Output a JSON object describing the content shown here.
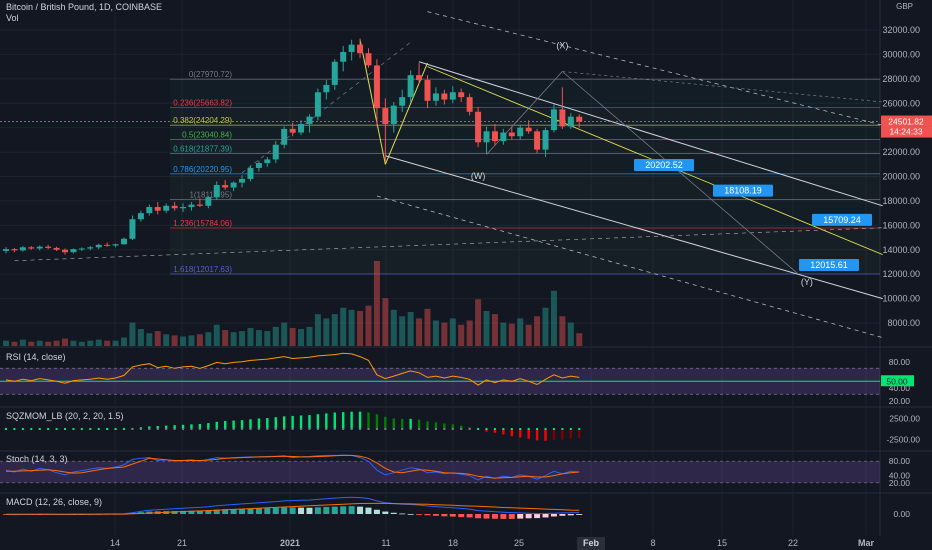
{
  "header": {
    "title": "Bitcoin / British Pound, 1D, COINBASE",
    "vol_label": "Vol",
    "currency": "GBP"
  },
  "colors": {
    "background": "#131722",
    "up": "#26a69a",
    "down": "#ef5350",
    "grid": "#1e222d"
  },
  "chart_data": [
    {
      "type": "candlestick",
      "title": "Bitcoin / British Pound, 1D, COINBASE",
      "y_axis": {
        "ticks": [
          "32000.00",
          "30000.00",
          "28000.00",
          "26000.00",
          "24000.00",
          "22000.00",
          "20000.00",
          "18000.00",
          "16000.00",
          "14000.00",
          "12000.00",
          "10000.00",
          "8000.00"
        ],
        "ylim": [
          7000,
          33500
        ]
      },
      "x_axis": {
        "ticks": [
          "14",
          "21",
          "2021",
          "11",
          "18",
          "25",
          "Feb",
          "8",
          "15",
          "22",
          "Mar"
        ]
      },
      "candles": [
        [
          13900,
          14200,
          13700,
          14050
        ],
        [
          14050,
          14150,
          13800,
          13950
        ],
        [
          13950,
          14300,
          13850,
          14200
        ],
        [
          14200,
          14300,
          14000,
          14100
        ],
        [
          14100,
          14350,
          13950,
          14250
        ],
        [
          14250,
          14400,
          14050,
          14150
        ],
        [
          14150,
          14250,
          13900,
          14000
        ],
        [
          14000,
          14100,
          13600,
          13800
        ],
        [
          13800,
          14100,
          13700,
          14050
        ],
        [
          14050,
          14200,
          13900,
          14100
        ],
        [
          14100,
          14300,
          13950,
          14200
        ],
        [
          14200,
          14500,
          14050,
          14400
        ],
        [
          14400,
          14600,
          14250,
          14350
        ],
        [
          14350,
          14500,
          14200,
          14450
        ],
        [
          14450,
          15000,
          14400,
          14900
        ],
        [
          14900,
          16800,
          14800,
          16500
        ],
        [
          16500,
          17200,
          16300,
          17000
        ],
        [
          17000,
          17700,
          16800,
          17500
        ],
        [
          17500,
          17900,
          16900,
          17200
        ],
        [
          17200,
          17800,
          17000,
          17600
        ],
        [
          17600,
          17900,
          17200,
          17400
        ],
        [
          17400,
          17800,
          17100,
          17500
        ],
        [
          17500,
          17900,
          17200,
          17700
        ],
        [
          17700,
          18200,
          17500,
          17600
        ],
        [
          17600,
          18400,
          17400,
          18300
        ],
        [
          18300,
          19600,
          18100,
          19300
        ],
        [
          19300,
          19700,
          18900,
          19100
        ],
        [
          19100,
          19600,
          18800,
          19500
        ],
        [
          19500,
          20100,
          19100,
          19800
        ],
        [
          19800,
          20900,
          19600,
          20700
        ],
        [
          20700,
          21300,
          20400,
          21100
        ],
        [
          21100,
          21600,
          20800,
          21400
        ],
        [
          21400,
          22900,
          21100,
          22600
        ],
        [
          22600,
          24100,
          22300,
          23900
        ],
        [
          23900,
          24400,
          23300,
          23600
        ],
        [
          23600,
          24600,
          23400,
          24300
        ],
        [
          24300,
          25100,
          23600,
          24900
        ],
        [
          24900,
          27200,
          24600,
          26900
        ],
        [
          26900,
          27900,
          26300,
          27500
        ],
        [
          27500,
          29600,
          27100,
          29400
        ],
        [
          29400,
          30700,
          28600,
          30200
        ],
        [
          30200,
          31200,
          29500,
          30800
        ],
        [
          30800,
          31300,
          29700,
          30100
        ],
        [
          30100,
          30500,
          28900,
          29100
        ],
        [
          29100,
          29600,
          24100,
          25600
        ],
        [
          25600,
          26400,
          21200,
          24300
        ],
        [
          24300,
          26100,
          23600,
          25800
        ],
        [
          25800,
          27100,
          25300,
          26500
        ],
        [
          26500,
          28700,
          26100,
          28300
        ],
        [
          28300,
          29300,
          27600,
          27900
        ],
        [
          27900,
          28300,
          25600,
          26200
        ],
        [
          26200,
          27300,
          25800,
          26800
        ],
        [
          26800,
          27100,
          25900,
          26300
        ],
        [
          26300,
          27400,
          26000,
          26900
        ],
        [
          26900,
          27200,
          26100,
          26500
        ],
        [
          26500,
          26800,
          25000,
          25300
        ],
        [
          25300,
          25700,
          22400,
          22800
        ],
        [
          22800,
          24100,
          21900,
          23700
        ],
        [
          23700,
          24300,
          22600,
          22900
        ],
        [
          22900,
          23900,
          22600,
          23600
        ],
        [
          23600,
          24100,
          23000,
          23300
        ],
        [
          23300,
          24200,
          23000,
          24000
        ],
        [
          24000,
          24600,
          23500,
          23700
        ],
        [
          23700,
          23900,
          21900,
          22200
        ],
        [
          22200,
          24000,
          21600,
          23800
        ],
        [
          23800,
          25900,
          23600,
          25500
        ],
        [
          25500,
          27300,
          23900,
          24100
        ],
        [
          24100,
          25200,
          23900,
          24900
        ],
        [
          24900,
          25100,
          24000,
          24500
        ]
      ],
      "volume": [
        5,
        4,
        6,
        4,
        5,
        4,
        5,
        7,
        5,
        4,
        5,
        6,
        5,
        5,
        8,
        22,
        16,
        12,
        14,
        11,
        10,
        9,
        10,
        11,
        13,
        20,
        15,
        13,
        14,
        17,
        15,
        14,
        18,
        22,
        17,
        16,
        18,
        30,
        26,
        30,
        36,
        34,
        33,
        38,
        80,
        45,
        34,
        28,
        32,
        26,
        35,
        24,
        22,
        26,
        20,
        24,
        44,
        33,
        30,
        22,
        21,
        26,
        20,
        28,
        36,
        52,
        28,
        22,
        12
      ],
      "last_price": "24501.82",
      "countdown": "14:24:33",
      "fibonacci": [
        {
          "label": "0(27970.72)",
          "value": 27970.72,
          "color": "#787b86"
        },
        {
          "label": "0.236(25663.82)",
          "value": 25663.82,
          "color": "#f23645"
        },
        {
          "label": "0.382(24204.29)",
          "value": 24204.29,
          "color": "#c7c74a"
        },
        {
          "label": "0.5(23040.84)",
          "value": 23040.84,
          "color": "#4caf50"
        },
        {
          "label": "0.618(21877.39)",
          "value": 21877.39,
          "color": "#26a69a"
        },
        {
          "label": "0.786(20220.95)",
          "value": 20220.95,
          "color": "#2196f3"
        },
        {
          "label": "1(18110.95)",
          "value": 18110.95,
          "color": "#787b86"
        },
        {
          "label": "1.236(15784.06)",
          "value": 15784.06,
          "color": "#f23645"
        },
        {
          "label": "1.618(12017.63)",
          "value": 12017.63,
          "color": "#5b5bd6"
        }
      ],
      "target_labels": [
        {
          "text": "20202.52",
          "value": 20202.52
        },
        {
          "text": "18108.19",
          "value": 18108.19
        },
        {
          "text": "15709.24",
          "value": 15709.24
        },
        {
          "text": "12015.61",
          "value": 12015.61
        }
      ],
      "wave_labels": [
        "(X)",
        "(W)",
        "(Y)"
      ]
    },
    {
      "type": "line",
      "title": "RSI (14, close)",
      "y_axis": {
        "ticks": [
          "80.00",
          "40.00",
          "20.00"
        ],
        "ylim": [
          15,
          95
        ]
      },
      "highlight_value": "50.00",
      "values": [
        52,
        50,
        53,
        51,
        54,
        52,
        50,
        47,
        51,
        52,
        53,
        55,
        53,
        55,
        59,
        72,
        75,
        77,
        71,
        73,
        70,
        72,
        73,
        70,
        74,
        79,
        77,
        79,
        80,
        82,
        83,
        84,
        86,
        88,
        85,
        86,
        87,
        89,
        90,
        91,
        93,
        92,
        88,
        82,
        60,
        54,
        58,
        62,
        66,
        63,
        56,
        58,
        55,
        58,
        56,
        53,
        44,
        52,
        48,
        52,
        50,
        54,
        50,
        45,
        53,
        60,
        55,
        58,
        56
      ]
    },
    {
      "type": "histogram",
      "title": "SQZMOM_LB (20, 2, 20, 1.5)",
      "y_axis": {
        "ticks": [
          "2500.00",
          "-2500.00"
        ],
        "ylim": [
          -4500,
          4500
        ]
      },
      "values": [
        -150,
        -120,
        -100,
        -80,
        -90,
        -70,
        -60,
        -50,
        -40,
        -60,
        -30,
        -20,
        -10,
        10,
        40,
        200,
        400,
        600,
        700,
        800,
        900,
        1000,
        1100,
        1200,
        1400,
        1700,
        1900,
        2000,
        2100,
        2300,
        2500,
        2600,
        2800,
        3000,
        3100,
        3200,
        3300,
        3500,
        3700,
        3900,
        4000,
        4100,
        4100,
        3900,
        3500,
        2900,
        2500,
        2400,
        2400,
        2200,
        1800,
        1600,
        1300,
        1100,
        800,
        400,
        -100,
        -600,
        -900,
        -1300,
        -1700,
        -2000,
        -2300,
        -2700,
        -2800,
        -2600,
        -2500,
        -2300,
        -2100
      ]
    },
    {
      "type": "line",
      "title": "Stoch (14, 3, 3)",
      "y_axis": {
        "ticks": [
          "80.00",
          "40.00",
          "20.00"
        ],
        "ylim": [
          0,
          100
        ]
      },
      "series": [
        {
          "values": [
            55,
            50,
            58,
            52,
            60,
            56,
            48,
            42,
            50,
            54,
            58,
            62,
            60,
            64,
            70,
            85,
            88,
            90,
            82,
            84,
            80,
            82,
            84,
            80,
            85,
            90,
            88,
            90,
            91,
            92,
            92,
            93,
            94,
            95,
            90,
            92,
            93,
            95,
            96,
            96,
            97,
            96,
            90,
            80,
            55,
            42,
            48,
            55,
            62,
            58,
            48,
            50,
            45,
            48,
            44,
            40,
            28,
            38,
            32,
            38,
            35,
            42,
            38,
            30,
            40,
            52,
            45,
            52,
            50
          ]
        },
        {
          "values": [
            52,
            52,
            53,
            54,
            55,
            56,
            54,
            50,
            47,
            48,
            52,
            56,
            60,
            62,
            64,
            72,
            80,
            88,
            86,
            84,
            82,
            82,
            82,
            82,
            83,
            85,
            88,
            89,
            90,
            91,
            92,
            92,
            93,
            94,
            93,
            92,
            92,
            93,
            94,
            95,
            96,
            96,
            94,
            88,
            75,
            60,
            50,
            48,
            52,
            56,
            55,
            52,
            48,
            47,
            46,
            44,
            38,
            35,
            33,
            34,
            35,
            37,
            38,
            36,
            36,
            40,
            45,
            48,
            50
          ]
        }
      ]
    },
    {
      "type": "bar",
      "title": "MACD (12, 26, close, 9)",
      "y_axis": {
        "ticks": [
          "0.00"
        ],
        "ylim": [
          -2200,
          2200
        ]
      },
      "histogram": [
        -40,
        -50,
        -30,
        -20,
        -10,
        -15,
        -25,
        -35,
        -20,
        -10,
        0,
        10,
        15,
        20,
        30,
        120,
        220,
        300,
        330,
        350,
        360,
        380,
        400,
        420,
        460,
        540,
        580,
        600,
        620,
        660,
        700,
        720,
        760,
        800,
        800,
        780,
        760,
        820,
        860,
        900,
        940,
        960,
        900,
        780,
        520,
        300,
        150,
        60,
        0,
        -60,
        -150,
        -220,
        -280,
        -320,
        -380,
        -420,
        -520,
        -560,
        -580,
        -600,
        -600,
        -560,
        -520,
        -500,
        -420,
        -300,
        -220,
        -160,
        -110
      ],
      "series": [
        {
          "values": [
            -60,
            -70,
            -55,
            -45,
            -35,
            -35,
            -45,
            -55,
            -40,
            -30,
            -20,
            -10,
            0,
            10,
            25,
            160,
            320,
            450,
            520,
            580,
            640,
            700,
            760,
            810,
            880,
            1000,
            1090,
            1160,
            1230,
            1300,
            1380,
            1450,
            1520,
            1600,
            1640,
            1680,
            1700,
            1780,
            1860,
            1940,
            2000,
            2040,
            2000,
            1900,
            1600,
            1380,
            1280,
            1200,
            1160,
            1100,
            980,
            900,
            820,
            760,
            680,
            600,
            420,
            350,
            280,
            220,
            170,
            140,
            100,
            50,
            60,
            100,
            130,
            150,
            170
          ]
        },
        {
          "values": [
            -20,
            -25,
            -25,
            -25,
            -25,
            -22,
            -22,
            -22,
            -22,
            -22,
            -20,
            -20,
            -18,
            -15,
            -10,
            20,
            60,
            110,
            160,
            210,
            260,
            300,
            340,
            380,
            420,
            460,
            510,
            560,
            610,
            660,
            710,
            760,
            810,
            860,
            910,
            960,
            1000,
            1050,
            1100,
            1150,
            1200,
            1240,
            1280,
            1300,
            1300,
            1290,
            1270,
            1250,
            1230,
            1210,
            1180,
            1140,
            1100,
            1060,
            1020,
            980,
            940,
            900,
            850,
            800,
            760,
            720,
            680,
            640,
            600,
            560,
            520,
            480,
            450
          ]
        }
      ]
    }
  ]
}
